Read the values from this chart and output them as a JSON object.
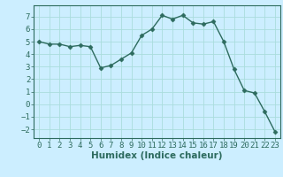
{
  "x": [
    0,
    1,
    2,
    3,
    4,
    5,
    6,
    7,
    8,
    9,
    10,
    11,
    12,
    13,
    14,
    15,
    16,
    17,
    18,
    19,
    20,
    21,
    22,
    23
  ],
  "y": [
    5.0,
    4.8,
    4.8,
    4.6,
    4.7,
    4.6,
    2.9,
    3.1,
    3.6,
    4.1,
    5.5,
    6.0,
    7.1,
    6.8,
    7.1,
    6.5,
    6.4,
    6.6,
    5.0,
    2.8,
    1.1,
    0.9,
    -0.6,
    -2.2
  ],
  "line_color": "#2d6b5e",
  "marker": "D",
  "marker_size": 2.5,
  "bg_color": "#cceeff",
  "grid_color": "#aadddd",
  "xlabel": "Humidex (Indice chaleur)",
  "xlim": [
    -0.5,
    23.5
  ],
  "ylim": [
    -2.7,
    7.9
  ],
  "yticks": [
    -2,
    -1,
    0,
    1,
    2,
    3,
    4,
    5,
    6,
    7
  ],
  "xticks": [
    0,
    1,
    2,
    3,
    4,
    5,
    6,
    7,
    8,
    9,
    10,
    11,
    12,
    13,
    14,
    15,
    16,
    17,
    18,
    19,
    20,
    21,
    22,
    23
  ],
  "tick_color": "#2d6b5e",
  "font_size": 6.5,
  "xlabel_fontsize": 7.5,
  "line_width": 1.0
}
